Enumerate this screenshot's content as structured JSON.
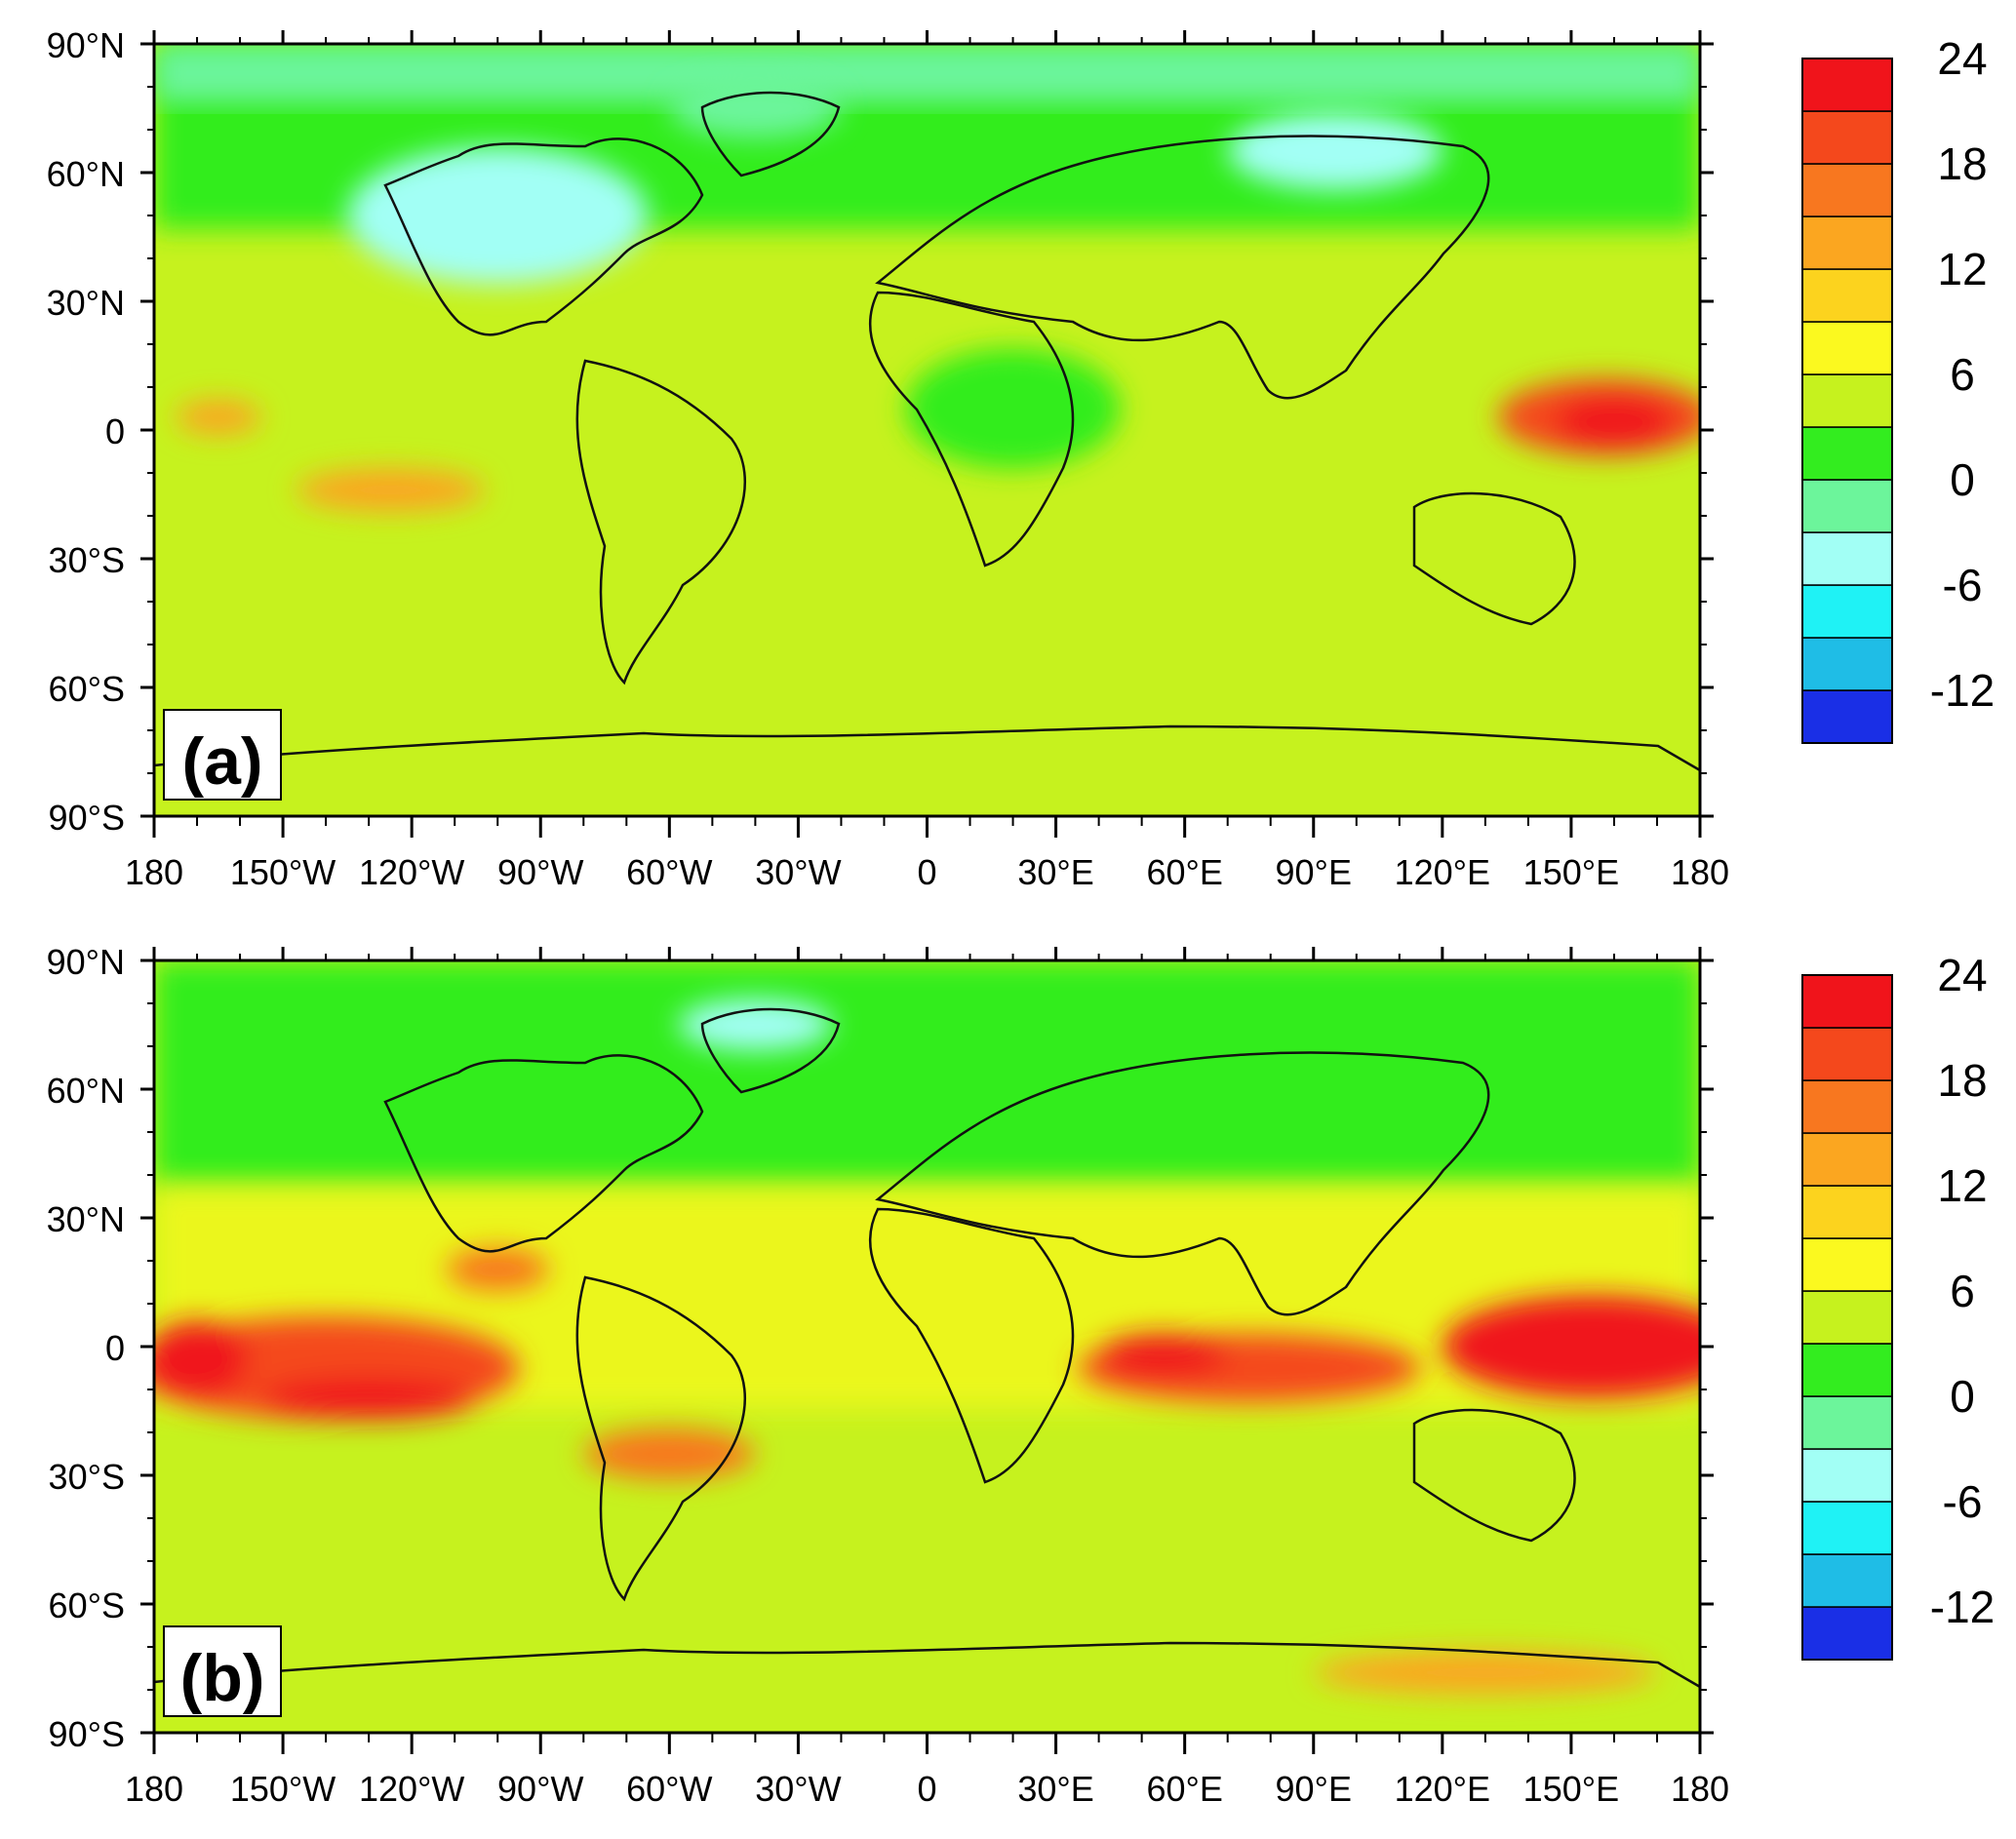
{
  "panels": [
    {
      "id": "a",
      "label": "(a)",
      "lat_labels": [
        "90°N",
        "60°N",
        "30°N",
        "0",
        "30°S",
        "60°S",
        "90°S"
      ],
      "lon_labels": [
        "180",
        "150°W",
        "120°W",
        "90°W",
        "60°W",
        "30°W",
        "0",
        "30°E",
        "60°E",
        "90°E",
        "120°E",
        "150°E",
        "180"
      ],
      "colorbar": {
        "levels": [
          -15,
          -12,
          -9,
          -6,
          -3,
          0,
          3,
          6,
          9,
          12,
          15,
          18,
          21,
          24
        ],
        "tick_labels": [
          "-12",
          "-6",
          "0",
          "6",
          "12",
          "18",
          "24"
        ],
        "colors": [
          "#1a2fe6",
          "#1fbde6",
          "#1ff2f5",
          "#a2fff5",
          "#6cf59b",
          "#33ed1f",
          "#c6f21e",
          "#fbf91f",
          "#fcd31e",
          "#fba620",
          "#f8771f",
          "#f4481c",
          "#f0141b"
        ]
      },
      "features": [
        {
          "lon": 158,
          "lat": 3,
          "rx": 25,
          "ry": 9,
          "color": "#f4481c"
        },
        {
          "lon": 160,
          "lat": 2,
          "rx": 14,
          "ry": 6,
          "color": "#f0141b"
        },
        {
          "lon": -125,
          "lat": -14,
          "rx": 22,
          "ry": 5,
          "color": "#fba620"
        },
        {
          "lon": -165,
          "lat": 3,
          "rx": 10,
          "ry": 4,
          "color": "#fba620"
        },
        {
          "lon": -100,
          "lat": 50,
          "rx": 35,
          "ry": 16,
          "color": "#a2fff5"
        },
        {
          "lon": 95,
          "lat": 65,
          "rx": 25,
          "ry": 9,
          "color": "#a2fff5"
        },
        {
          "lon": -40,
          "lat": 75,
          "rx": 20,
          "ry": 7,
          "color": "#6cf59b"
        },
        {
          "lon": 20,
          "lat": 5,
          "rx": 25,
          "ry": 14,
          "color": "#33ed1f"
        }
      ]
    },
    {
      "id": "b",
      "label": "(b)",
      "lat_labels": [
        "90°N",
        "60°N",
        "30°N",
        "0",
        "30°S",
        "60°S",
        "90°S"
      ],
      "lon_labels": [
        "180",
        "150°W",
        "120°W",
        "90°W",
        "60°W",
        "30°W",
        "0",
        "30°E",
        "60°E",
        "90°E",
        "120°E",
        "150°E",
        "180"
      ],
      "colorbar": {
        "levels": [
          -15,
          -12,
          -9,
          -6,
          -3,
          0,
          3,
          6,
          9,
          12,
          15,
          18,
          21,
          24
        ],
        "tick_labels": [
          "-12",
          "-6",
          "0",
          "6",
          "12",
          "18",
          "24"
        ],
        "colors": [
          "#1a2fe6",
          "#1fbde6",
          "#1ff2f5",
          "#a2fff5",
          "#6cf59b",
          "#33ed1f",
          "#c6f21e",
          "#fbf91f",
          "#fcd31e",
          "#fba620",
          "#f8771f",
          "#f4481c",
          "#f0141b"
        ]
      },
      "features": [
        {
          "lon": -140,
          "lat": -5,
          "rx": 45,
          "ry": 12,
          "color": "#f4481c"
        },
        {
          "lon": -130,
          "lat": -12,
          "rx": 25,
          "ry": 5,
          "color": "#f0141b"
        },
        {
          "lon": -170,
          "lat": -3,
          "rx": 12,
          "ry": 9,
          "color": "#f0141b"
        },
        {
          "lon": 155,
          "lat": 0,
          "rx": 35,
          "ry": 12,
          "color": "#f0141b"
        },
        {
          "lon": 75,
          "lat": -5,
          "rx": 40,
          "ry": 8,
          "color": "#f4481c"
        },
        {
          "lon": 55,
          "lat": -2,
          "rx": 15,
          "ry": 5,
          "color": "#f0141b"
        },
        {
          "lon": -100,
          "lat": 18,
          "rx": 12,
          "ry": 5,
          "color": "#f8771f"
        },
        {
          "lon": 130,
          "lat": -76,
          "rx": 40,
          "ry": 5,
          "color": "#fba620"
        },
        {
          "lon": -40,
          "lat": 75,
          "rx": 18,
          "ry": 6,
          "color": "#a2fff5"
        },
        {
          "lon": -60,
          "lat": -25,
          "rx": 20,
          "ry": 6,
          "color": "#f8771f"
        }
      ]
    }
  ]
}
